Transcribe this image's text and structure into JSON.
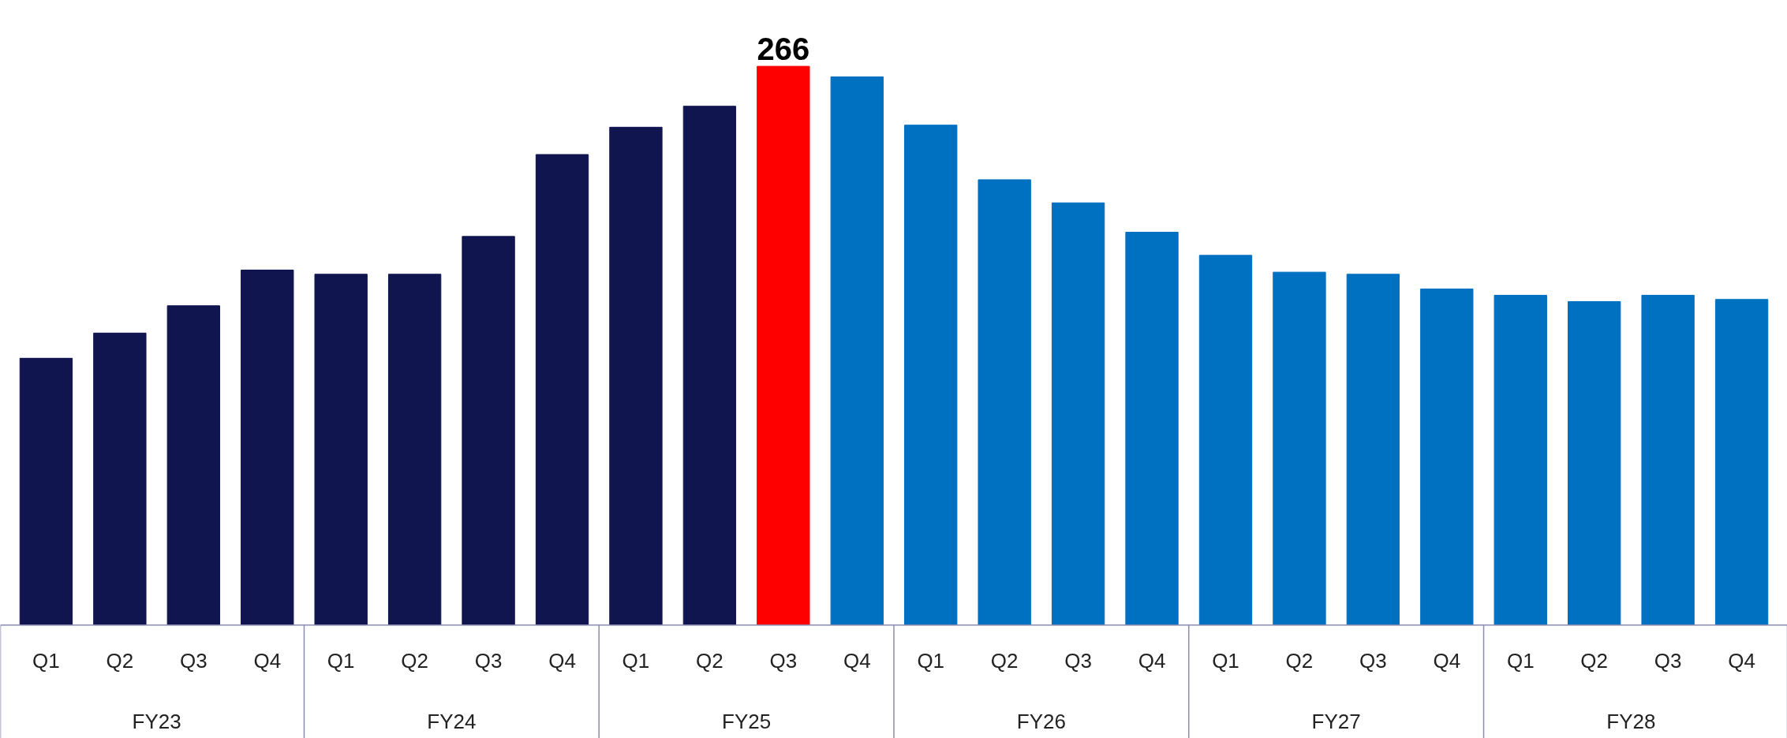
{
  "chart_data": {
    "type": "bar",
    "categories": [
      "Q1",
      "Q2",
      "Q3",
      "Q4",
      "Q1",
      "Q2",
      "Q3",
      "Q4",
      "Q1",
      "Q2",
      "Q3",
      "Q4",
      "Q1",
      "Q2",
      "Q3",
      "Q4",
      "Q1",
      "Q2",
      "Q3",
      "Q4",
      "Q1",
      "Q2",
      "Q3",
      "Q4"
    ],
    "values": [
      127,
      139,
      152,
      169,
      167,
      167,
      185,
      224,
      237,
      247,
      266,
      261,
      238,
      212,
      201,
      187,
      176,
      168,
      167,
      160,
      157,
      154,
      157,
      155
    ],
    "colors": [
      "#10154f",
      "#10154f",
      "#10154f",
      "#10154f",
      "#10154f",
      "#10154f",
      "#10154f",
      "#10154f",
      "#10154f",
      "#10154f",
      "#ff0000",
      "#0070c0",
      "#0070c0",
      "#0070c0",
      "#0070c0",
      "#0070c0",
      "#0070c0",
      "#0070c0",
      "#0070c0",
      "#0070c0",
      "#0070c0",
      "#0070c0",
      "#0070c0",
      "#0070c0"
    ],
    "value_labels": [
      null,
      null,
      null,
      null,
      null,
      null,
      null,
      null,
      null,
      null,
      "266",
      null,
      null,
      null,
      null,
      null,
      null,
      null,
      null,
      null,
      null,
      null,
      null,
      null
    ],
    "annotations": [
      "FY23",
      "FY24",
      "FY25",
      "FY26",
      "FY27",
      "FY28"
    ],
    "grid": false
  }
}
